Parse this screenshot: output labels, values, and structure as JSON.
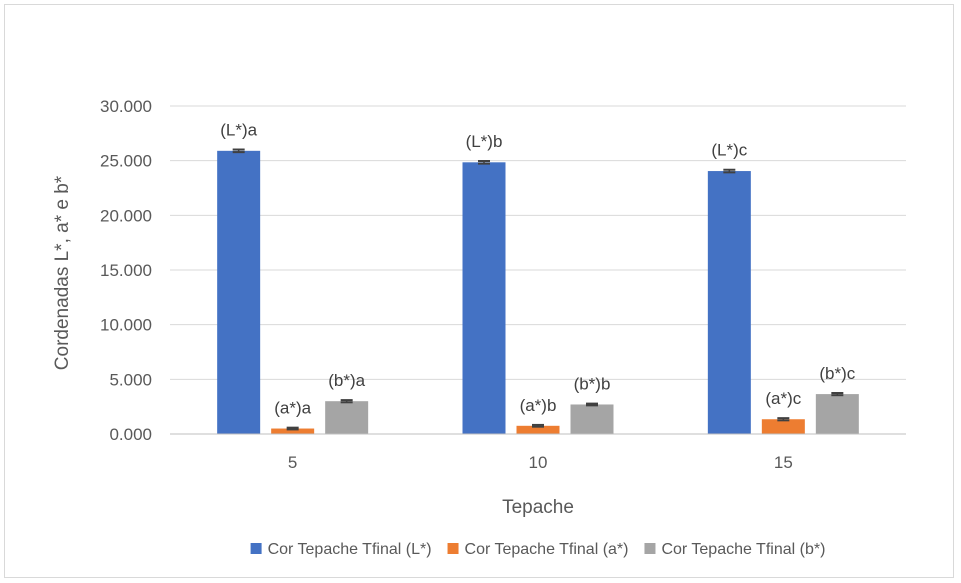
{
  "chart_data": {
    "type": "bar",
    "title": "",
    "xlabel": "Tepache",
    "ylabel": "Cordenadas L*, a* e b*",
    "categories": [
      "5",
      "10",
      "15"
    ],
    "ylim": [
      0,
      30
    ],
    "yticks": [
      "0.000",
      "5.000",
      "10.000",
      "15.000",
      "20.000",
      "25.000",
      "30.000"
    ],
    "ytick_values": [
      0,
      5,
      10,
      15,
      20,
      25,
      30
    ],
    "grid": true,
    "legend_position": "bottom",
    "series": [
      {
        "name": "Cor Tepache Tfinal (L*)",
        "color": "#4472C4",
        "values": [
          25.9,
          24.85,
          24.05
        ],
        "errors": [
          0.12,
          0.12,
          0.12
        ],
        "labels": [
          "(L*)a",
          "(L*)b",
          "(L*)c"
        ]
      },
      {
        "name": "Cor Tepache Tfinal (a*)",
        "color": "#ED7D31",
        "values": [
          0.5,
          0.75,
          1.35
        ],
        "errors": [
          0.08,
          0.08,
          0.1
        ],
        "labels": [
          "(a*)a",
          "(a*)b",
          "(a*)c"
        ]
      },
      {
        "name": "Cor Tepache Tfinal (b*)",
        "color": "#A5A5A5",
        "values": [
          3.0,
          2.7,
          3.65
        ],
        "errors": [
          0.1,
          0.08,
          0.1
        ],
        "labels": [
          "(b*)a",
          "(b*)b",
          "(b*)c"
        ]
      }
    ]
  }
}
